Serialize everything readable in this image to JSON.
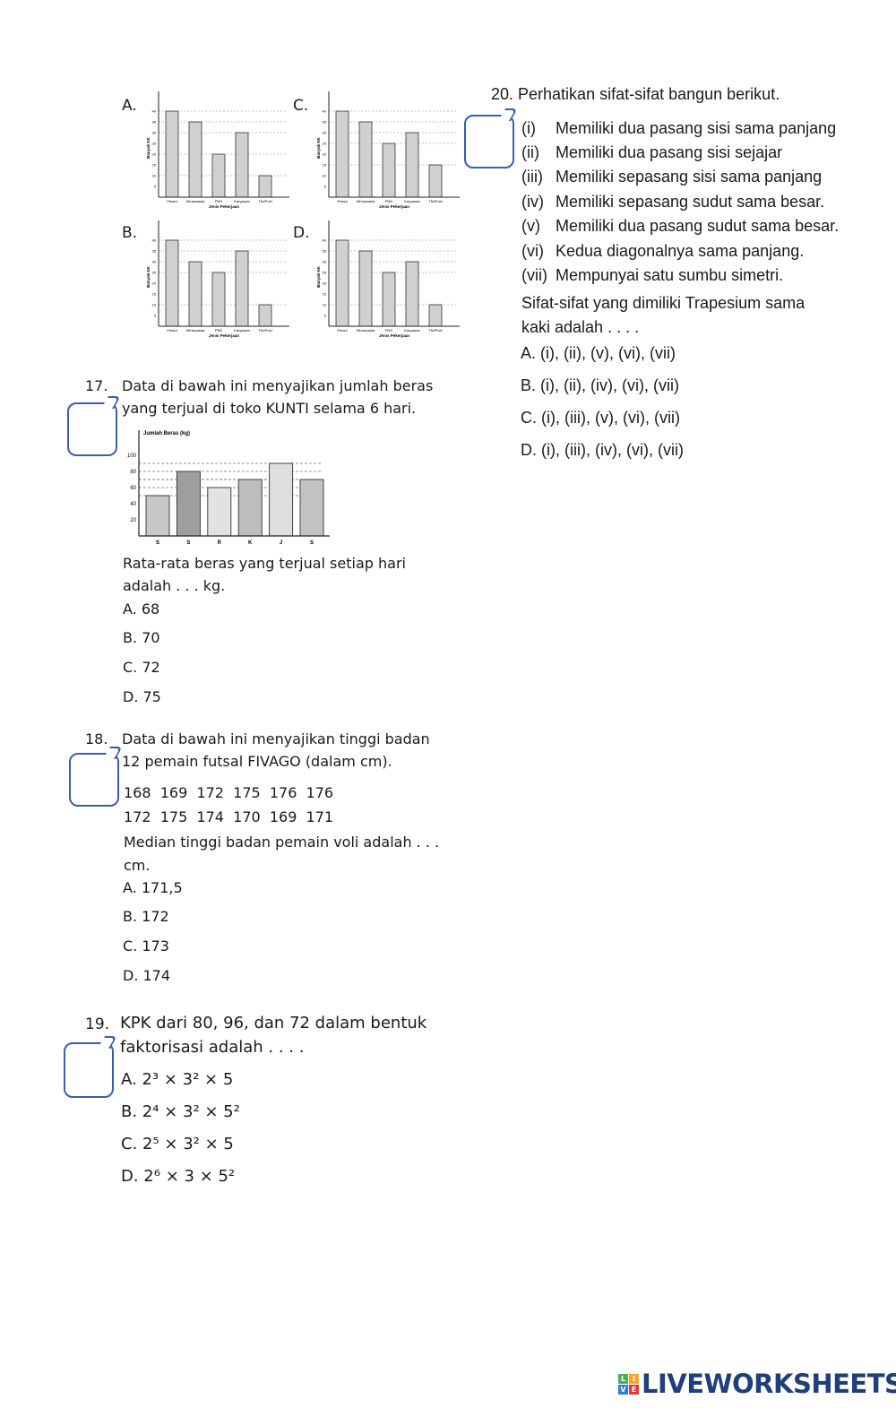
{
  "q16": {
    "option_labels": [
      "A.",
      "C.",
      "B.",
      "D."
    ],
    "charts": [
      {
        "type": "bar",
        "label": "A.",
        "categories": [
          "Petani",
          "Wiraswasta",
          "PNS",
          "Karyawan",
          "TNI/Polri"
        ],
        "values": [
          40,
          35,
          20,
          30,
          10
        ],
        "xlabel": "Jenis Pekerjaan",
        "ylabel": "Banyak KK",
        "ylim": [
          0,
          45
        ],
        "yticks": [
          5,
          10,
          15,
          20,
          25,
          30,
          35,
          40
        ]
      },
      {
        "type": "bar",
        "label": "C.",
        "categories": [
          "Petani",
          "Wiraswasta",
          "PNS",
          "Karyawan",
          "TNI/Polri"
        ],
        "values": [
          40,
          35,
          25,
          30,
          15
        ],
        "xlabel": "Jenis Pekerjaan",
        "ylabel": "Banyak KK",
        "ylim": [
          0,
          45
        ],
        "yticks": [
          5,
          10,
          15,
          20,
          25,
          30,
          35,
          40
        ]
      },
      {
        "type": "bar",
        "label": "B.",
        "categories": [
          "Petani",
          "Wiraswasta",
          "PNS",
          "Karyawan",
          "TNI/Polri"
        ],
        "values": [
          40,
          30,
          25,
          35,
          10
        ],
        "xlabel": "Jenis Pekerjaan",
        "ylabel": "Banyak KK",
        "ylim": [
          0,
          45
        ],
        "yticks": [
          5,
          10,
          15,
          20,
          25,
          30,
          35,
          40
        ]
      },
      {
        "type": "bar",
        "label": "D.",
        "categories": [
          "Petani",
          "Wiraswasta",
          "PNS",
          "Karyawan",
          "TNI/Polri"
        ],
        "values": [
          40,
          35,
          25,
          30,
          10
        ],
        "xlabel": "Jenis Pekerjaan",
        "ylabel": "Banyak KK",
        "ylim": [
          0,
          45
        ],
        "yticks": [
          5,
          10,
          15,
          20,
          25,
          30,
          35,
          40
        ]
      }
    ]
  },
  "q17": {
    "number": "17.",
    "lines": [
      "Data di bawah ini menyajikan jumlah beras",
      "yang terjual di toko KUNTI selama 6 hari."
    ],
    "question": [
      "Rata-rata beras yang terjual setiap hari",
      "adalah . . . kg."
    ],
    "options": [
      "A.  68",
      "B.  70",
      "C.  72",
      "D.  75"
    ]
  },
  "chart_data": {
    "type": "bar",
    "title": "",
    "ylabel": "Jumlah Beras (kg)",
    "xlabel": "",
    "categories": [
      "S",
      "S",
      "R",
      "K",
      "J",
      "S"
    ],
    "values": [
      50,
      80,
      60,
      70,
      90,
      70
    ],
    "bar_colors": [
      "#c8c8c8",
      "#9e9e9e",
      "#e2e2e2",
      "#bdbdbd",
      "#dedede",
      "#c2c2c2"
    ],
    "ylim": [
      0,
      110
    ],
    "yticks": [
      20,
      40,
      60,
      80,
      100
    ],
    "grid": "dashed lines at bar heights"
  },
  "q18": {
    "number": "18.",
    "lines": [
      "Data di bawah ini menyajikan tinggi badan",
      "12 pemain futsal FIVAGO (dalam cm)."
    ],
    "data_rows": [
      "168  169  172  175  176  176",
      "172  175  174  170  169  171"
    ],
    "question": [
      "Median tinggi badan pemain voli adalah . . .",
      "cm."
    ],
    "options": [
      "A.  171,5",
      "B.  172",
      "C.  173",
      "D.  174"
    ]
  },
  "q19": {
    "number": "19.",
    "lines": [
      "KPK dari 80, 96, dan 72 dalam bentuk",
      "faktorisasi adalah . . . ."
    ],
    "options": [
      "A.  2³ × 3² × 5",
      "B.  2⁴ × 3² × 5²",
      "C.  2⁵ × 3² × 5",
      "D.  2⁶ × 3 × 5²"
    ]
  },
  "q20": {
    "title": "20. Perhatikan sifat-sifat bangun berikut.",
    "items": [
      {
        "num": "(i)",
        "text": "Memiliki dua pasang sisi sama panjang"
      },
      {
        "num": "(ii)",
        "text": "Memiliki dua pasang sisi sejajar"
      },
      {
        "num": "(iii)",
        "text": "Memiliki sepasang sisi sama panjang"
      },
      {
        "num": "(iv)",
        "text": "Memiliki sepasang sudut sama besar."
      },
      {
        "num": "(v)",
        "text": "Memiliki dua pasang sudut sama besar."
      },
      {
        "num": "(vi)",
        "text": "Kedua diagonalnya sama panjang."
      },
      {
        "num": "(vii)",
        "text": "Mempunyai satu sumbu simetri."
      }
    ],
    "question": [
      "Sifat-sifat yang dimiliki Trapesium sama",
      "kaki adalah . . . ."
    ],
    "options": [
      "A.  (i), (ii), (v), (vi), (vii)",
      "B.  (i), (ii), (iv), (vi), (vii)",
      "C.  (i), (iii), (v), (vi), (vii)",
      "D.  (i), (iii), (iv), (vi), (vii)"
    ]
  },
  "footer": {
    "logo_text": "LIVEWORKSHEETS",
    "logo_letters": [
      "L",
      "I",
      "V",
      "E"
    ],
    "logo_colors": [
      "#4caf50",
      "#f5a623",
      "#2d7fd3",
      "#e53935"
    ]
  }
}
